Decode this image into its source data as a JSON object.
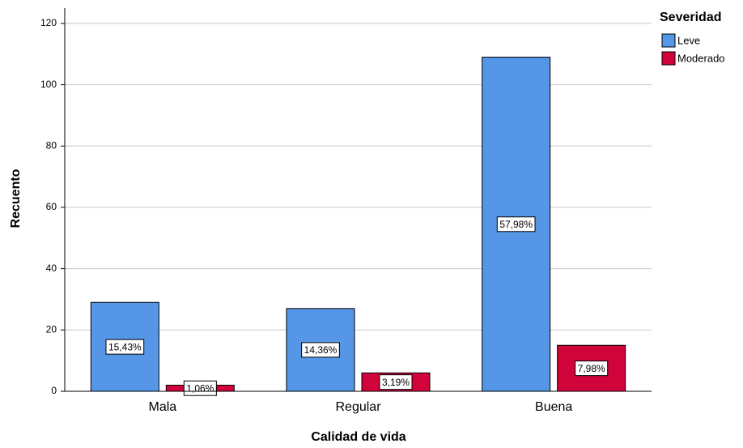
{
  "chart_data": {
    "type": "bar",
    "x_label": "Calidad de vida",
    "y_label": "Recuento",
    "legend_title": "Severidad",
    "legend": "right",
    "categories": [
      "Mala",
      "Regular",
      "Buena"
    ],
    "series": [
      {
        "name": "Leve",
        "color": "#5596e6",
        "values": [
          29,
          27,
          109
        ],
        "labels": [
          "15,43%",
          "14,36%",
          "57,98%"
        ]
      },
      {
        "name": "Moderado",
        "color": "#d0033b",
        "values": [
          2,
          6,
          15
        ],
        "labels": [
          "1,06%",
          "3,19%",
          "7,98%"
        ]
      }
    ],
    "ylim": [
      0,
      125
    ],
    "yticks": [
      0,
      20,
      40,
      60,
      80,
      100,
      120
    ],
    "grid": true
  }
}
